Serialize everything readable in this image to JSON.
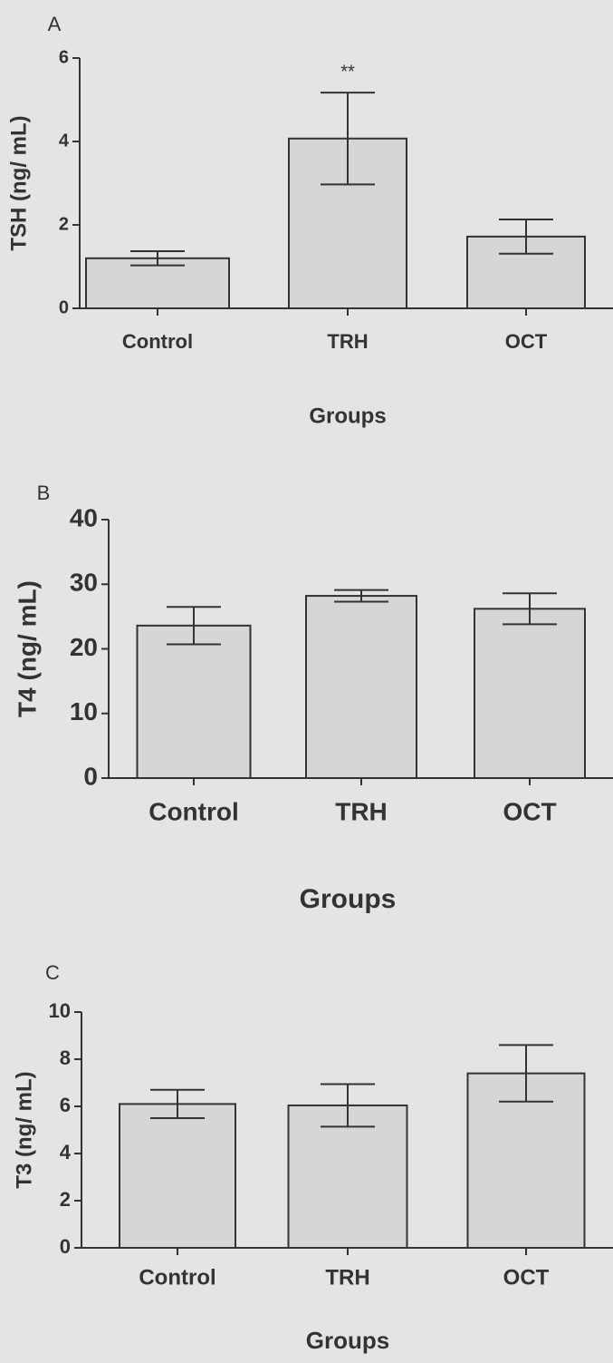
{
  "chart_data": [
    {
      "type": "bar",
      "panel": "A",
      "ylabel": "TSH (ng/ mL)",
      "xlabel": "Groups",
      "categories": [
        "Control",
        "TRH",
        "OCT"
      ],
      "values": [
        1.2,
        4.07,
        1.72
      ],
      "errors": [
        0.17,
        1.1,
        0.41
      ],
      "color": "#d6d6d6",
      "ylim": [
        0,
        6
      ],
      "yticks": [
        0,
        2,
        4,
        6
      ],
      "annotations": [
        {
          "text": "**",
          "x": "TRH"
        }
      ]
    },
    {
      "type": "bar",
      "panel": "B",
      "ylabel": "T4 (ng/ mL)",
      "xlabel": "Groups",
      "categories": [
        "Control",
        "TRH",
        "OCT"
      ],
      "values": [
        23.6,
        28.2,
        26.2
      ],
      "errors": [
        2.9,
        0.9,
        2.4
      ],
      "color": "#d6d6d6",
      "ylim": [
        0,
        40
      ],
      "yticks": [
        0,
        10,
        20,
        30,
        40
      ]
    },
    {
      "type": "bar",
      "panel": "C",
      "ylabel": "T3 (ng/ mL)",
      "xlabel": "Groups",
      "categories": [
        "Control",
        "TRH",
        "OCT"
      ],
      "values": [
        6.1,
        6.04,
        7.4
      ],
      "errors": [
        0.6,
        0.9,
        1.2
      ],
      "color": "#d6d6d6",
      "ylim": [
        0,
        10
      ],
      "yticks": [
        0,
        2,
        4,
        6,
        8,
        10
      ]
    }
  ]
}
